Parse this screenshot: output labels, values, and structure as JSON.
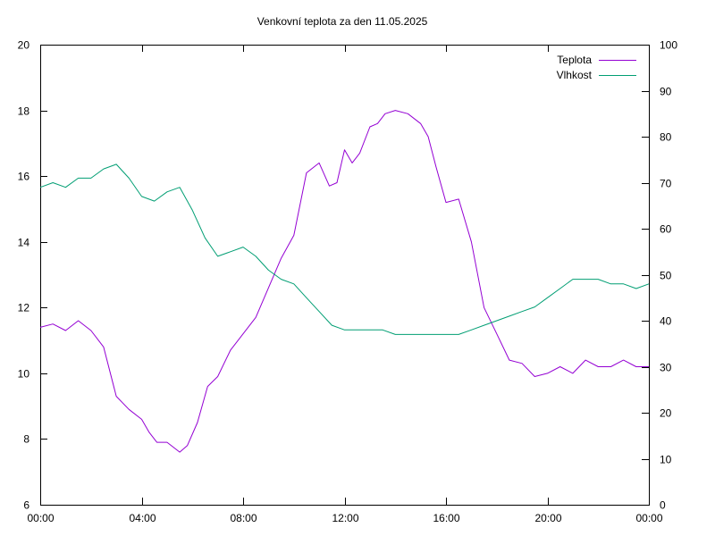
{
  "chart_data": {
    "type": "line",
    "title": "Venkovní teplota za den 11.05.2025",
    "xlabel": "",
    "ylabel": "",
    "y2label": "",
    "x_ticks": [
      "00:00",
      "04:00",
      "08:00",
      "12:00",
      "16:00",
      "20:00",
      "00:00"
    ],
    "xlim_hours": [
      0,
      24
    ],
    "ylim": [
      6,
      20
    ],
    "y_ticks": [
      6,
      8,
      10,
      12,
      14,
      16,
      18,
      20
    ],
    "y2lim": [
      0,
      100
    ],
    "y2_ticks": [
      0,
      10,
      20,
      30,
      40,
      50,
      60,
      70,
      80,
      90,
      100
    ],
    "grid": false,
    "legend_position": "top-right",
    "series": [
      {
        "name": "Teplota",
        "axis": "left",
        "color": "#9400d3",
        "x": [
          0,
          0.5,
          1,
          1.5,
          2,
          2.5,
          3,
          3.5,
          4,
          4.3,
          4.6,
          5,
          5.5,
          5.8,
          6.2,
          6.6,
          7,
          7.5,
          8,
          8.5,
          9,
          9.5,
          10,
          10.5,
          11,
          11.4,
          11.7,
          12,
          12.3,
          12.6,
          13,
          13.3,
          13.6,
          14,
          14.5,
          15,
          15.3,
          15.6,
          16,
          16.5,
          17,
          17.5,
          18,
          18.5,
          19,
          19.5,
          20,
          20.5,
          21,
          21.5,
          22,
          22.5,
          23,
          23.5,
          24
        ],
        "values": [
          11.4,
          11.5,
          11.3,
          11.6,
          11.3,
          10.8,
          9.3,
          8.9,
          8.6,
          8.2,
          7.9,
          7.9,
          7.6,
          7.8,
          8.5,
          9.6,
          9.9,
          10.7,
          11.2,
          11.7,
          12.6,
          13.5,
          14.2,
          16.1,
          16.4,
          15.7,
          15.8,
          16.8,
          16.4,
          16.7,
          17.5,
          17.6,
          17.9,
          18.0,
          17.9,
          17.6,
          17.2,
          16.3,
          15.2,
          15.3,
          14.0,
          12.0,
          11.2,
          10.4,
          10.3,
          9.9,
          10.0,
          10.2,
          10.0,
          10.4,
          10.2,
          10.2,
          10.4,
          10.2,
          10.2
        ]
      },
      {
        "name": "Vlhkost",
        "axis": "right",
        "color": "#009e73",
        "x": [
          0,
          0.5,
          1,
          1.5,
          2,
          2.5,
          3,
          3.5,
          4,
          4.5,
          5,
          5.5,
          6,
          6.5,
          7,
          7.5,
          8,
          8.5,
          9,
          9.5,
          10,
          10.5,
          11,
          11.5,
          12,
          12.5,
          13,
          13.5,
          14,
          14.5,
          15,
          15.5,
          16,
          16.5,
          17,
          17.5,
          18,
          18.5,
          19,
          19.5,
          20,
          20.5,
          21,
          21.5,
          22,
          22.5,
          23,
          23.5,
          24
        ],
        "values": [
          69,
          70,
          69,
          71,
          71,
          73,
          74,
          71,
          67,
          66,
          68,
          69,
          64,
          58,
          54,
          55,
          56,
          54,
          51,
          49,
          48,
          45,
          42,
          39,
          38,
          38,
          38,
          38,
          37,
          37,
          37,
          37,
          37,
          37,
          38,
          39,
          40,
          41,
          42,
          43,
          45,
          47,
          49,
          49,
          49,
          48,
          48,
          47,
          48
        ]
      }
    ]
  }
}
